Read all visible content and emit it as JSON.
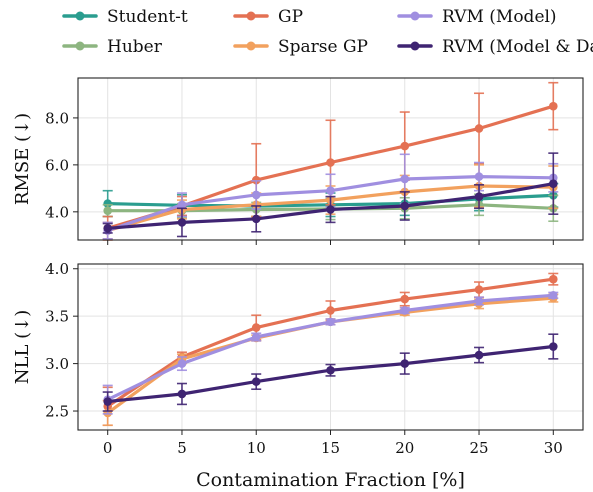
{
  "chart_data": [
    {
      "type": "line",
      "ylabel": "RMSE (↓)",
      "xlabel": "",
      "x": [
        0,
        5,
        10,
        15,
        20,
        25,
        30
      ],
      "xlim": [
        -2,
        32
      ],
      "ylim": [
        2.8,
        9.7
      ],
      "yticks": [
        4.0,
        6.0,
        8.0
      ],
      "ytick_labels": [
        "4.0",
        "6.0",
        "8.0"
      ],
      "xtick_labels": [
        "",
        "",
        "",
        "",
        "",
        "",
        ""
      ],
      "grid": true,
      "series": [
        {
          "name": "Student-t",
          "color": "#2a9d8f",
          "values": [
            4.35,
            4.28,
            4.25,
            4.3,
            4.35,
            4.55,
            4.7
          ],
          "err": [
            0.55,
            0.45,
            0.45,
            0.5,
            0.5,
            0.5,
            0.5
          ]
        },
        {
          "name": "Huber",
          "color": "#8db580",
          "values": [
            4.05,
            4.05,
            4.1,
            4.12,
            4.15,
            4.3,
            4.15
          ],
          "err": [
            0.25,
            0.3,
            0.3,
            0.45,
            0.45,
            0.45,
            0.55
          ]
        },
        {
          "name": "GP",
          "color": "#e47153",
          "values": [
            3.3,
            4.25,
            5.35,
            6.1,
            6.8,
            7.55,
            8.5
          ],
          "err": [
            0.5,
            0.4,
            1.55,
            1.8,
            1.45,
            1.5,
            1.0
          ]
        },
        {
          "name": "Sparse GP",
          "color": "#f2a15e",
          "values": [
            3.2,
            4.1,
            4.3,
            4.5,
            4.85,
            5.1,
            5.05
          ],
          "err": [
            0.35,
            0.4,
            0.5,
            0.6,
            0.7,
            0.9,
            0.9
          ]
        },
        {
          "name": "RVM (Model)",
          "color": "#a08fe0",
          "values": [
            3.2,
            4.3,
            4.72,
            4.9,
            5.4,
            5.5,
            5.45
          ],
          "err": [
            0.35,
            0.5,
            0.6,
            0.7,
            1.05,
            0.6,
            0.6
          ]
        },
        {
          "name": "RVM (Model & Data)",
          "color": "#3f2472",
          "values": [
            3.3,
            3.55,
            3.7,
            4.1,
            4.25,
            4.65,
            5.2
          ],
          "err": [
            0.2,
            0.6,
            0.55,
            0.55,
            0.6,
            0.5,
            1.3
          ]
        }
      ]
    },
    {
      "type": "line",
      "ylabel": "NLL (↓)",
      "xlabel": "Contamination Fraction [%]",
      "x": [
        0,
        5,
        10,
        15,
        20,
        25,
        30
      ],
      "xlim": [
        -2,
        32
      ],
      "ylim": [
        2.3,
        4.05
      ],
      "yticks": [
        2.5,
        3.0,
        3.5,
        4.0
      ],
      "ytick_labels": [
        "2.5",
        "3.0",
        "3.5",
        "4.0"
      ],
      "xtick_labels": [
        "0",
        "5",
        "10",
        "15",
        "20",
        "25",
        "30"
      ],
      "grid": true,
      "series": [
        {
          "name": "GP",
          "color": "#e47153",
          "values": [
            2.55,
            3.07,
            3.38,
            3.56,
            3.68,
            3.78,
            3.89
          ],
          "err": [
            0.2,
            0.05,
            0.13,
            0.1,
            0.07,
            0.08,
            0.06
          ]
        },
        {
          "name": "Sparse GP",
          "color": "#f2a15e",
          "values": [
            2.48,
            3.05,
            3.27,
            3.44,
            3.54,
            3.63,
            3.69
          ],
          "err": [
            0.13,
            0.05,
            0.03,
            0.03,
            0.03,
            0.05,
            0.04
          ]
        },
        {
          "name": "RVM (Model)",
          "color": "#a08fe0",
          "values": [
            2.62,
            3.0,
            3.28,
            3.44,
            3.56,
            3.66,
            3.72
          ],
          "err": [
            0.15,
            0.07,
            0.04,
            0.03,
            0.03,
            0.04,
            0.03
          ]
        },
        {
          "name": "RVM (Model & Data)",
          "color": "#3f2472",
          "values": [
            2.6,
            2.68,
            2.81,
            2.93,
            3.0,
            3.09,
            3.18
          ],
          "err": [
            0.1,
            0.11,
            0.08,
            0.06,
            0.11,
            0.08,
            0.13
          ]
        }
      ]
    }
  ],
  "legend": {
    "placement": "top",
    "entries": [
      {
        "label": "Student-t",
        "color": "#2a9d8f"
      },
      {
        "label": "GP",
        "color": "#e47153"
      },
      {
        "label": "RVM (Model)",
        "color": "#a08fe0"
      },
      {
        "label": "Huber",
        "color": "#8db580"
      },
      {
        "label": "Sparse GP",
        "color": "#f2a15e"
      },
      {
        "label": "RVM (Model & Data)",
        "color": "#3f2472"
      }
    ]
  }
}
